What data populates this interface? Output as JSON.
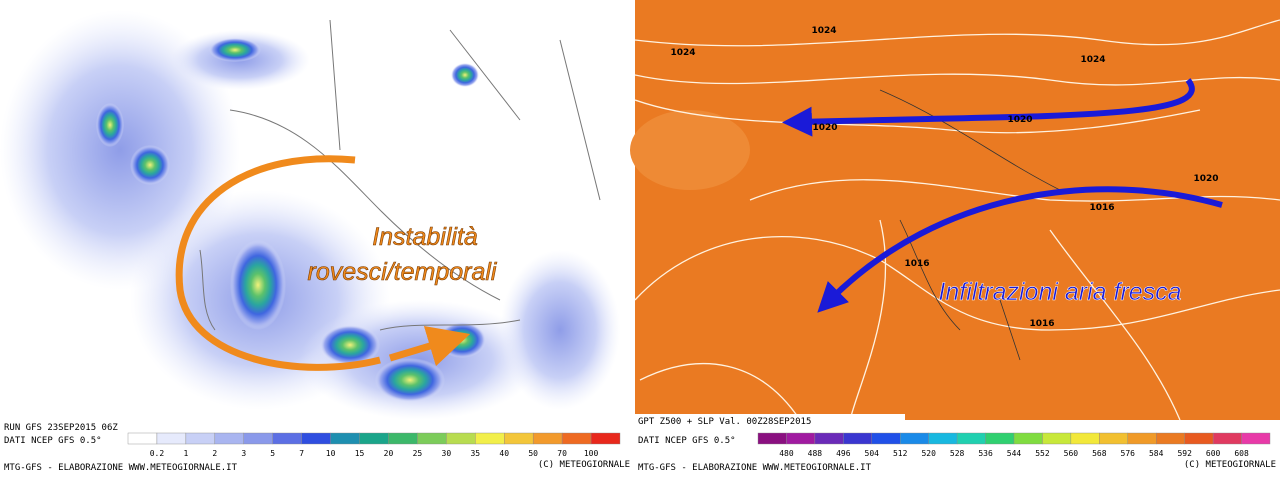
{
  "left_panel": {
    "annotation": [
      "Instabilità",
      "rovesci/temporali"
    ],
    "run_label": "RUN GFS 23SEP2015 06Z",
    "source": "DATI NCEP GFS 0.5°",
    "scale_labels": [
      "0.2",
      "1",
      "2",
      "3",
      "5",
      "7",
      "10",
      "15",
      "20",
      "25",
      "30",
      "35",
      "40",
      "50",
      "70",
      "100"
    ],
    "credit": "MTG-GFS - ELABORAZIONE WWW.METEOGIORNALE.IT",
    "copyright": "(C) METEOGIORNALE"
  },
  "right_panel": {
    "title": "GPT Z500 + SLP Val. 00Z28SEP2015",
    "source": "DATI NCEP GFS 0.5°",
    "isobar_labels": [
      "1024",
      "1024",
      "1024",
      "1020",
      "1020",
      "1020",
      "1016",
      "1016",
      "1016"
    ],
    "annotation": "Infiltrazioni aria fresca",
    "scale_labels": [
      "480",
      "488",
      "496",
      "504",
      "512",
      "520",
      "528",
      "536",
      "544",
      "552",
      "560",
      "568",
      "576",
      "584",
      "592",
      "600",
      "608"
    ],
    "credit": "MTG-GFS - ELABORAZIONE WWW.METEOGIORNALE.IT",
    "copyright": "(C) METEOGIORNALE"
  }
}
